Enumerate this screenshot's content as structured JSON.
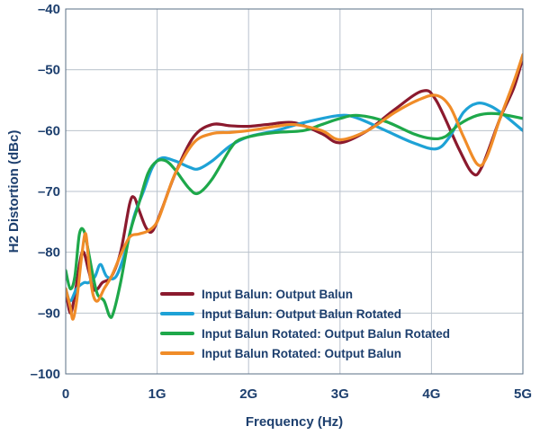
{
  "chart_data": {
    "type": "line",
    "xlabel": "Frequency (Hz)",
    "ylabel": "H2 Distortion (dBc)",
    "xlim": [
      0,
      5
    ],
    "ylim": [
      -100,
      -40
    ],
    "x_ticks": [
      0,
      1,
      2,
      3,
      4,
      5
    ],
    "x_tick_labels": [
      "0",
      "1G",
      "2G",
      "3G",
      "4G",
      "5G"
    ],
    "y_ticks": [
      -100,
      -90,
      -80,
      -70,
      -60,
      -50,
      -40
    ],
    "y_tick_labels": [
      "–100",
      "–90",
      "–80",
      "–70",
      "–60",
      "–50",
      "–40"
    ],
    "grid": true,
    "legend_position": "bottom-center",
    "x_unit_note": "x values in GHz",
    "series": [
      {
        "name": "Input Balun: Output Balun",
        "color": "#8b1a2e",
        "points": [
          [
            0,
            -86
          ],
          [
            0.05,
            -90
          ],
          [
            0.1,
            -87
          ],
          [
            0.18,
            -80
          ],
          [
            0.25,
            -83
          ],
          [
            0.3,
            -86
          ],
          [
            0.35,
            -86
          ],
          [
            0.4,
            -85
          ],
          [
            0.5,
            -84
          ],
          [
            0.6,
            -80
          ],
          [
            0.7,
            -72
          ],
          [
            0.75,
            -71
          ],
          [
            0.8,
            -73
          ],
          [
            0.88,
            -76
          ],
          [
            0.95,
            -76.5
          ],
          [
            1.05,
            -73
          ],
          [
            1.2,
            -67
          ],
          [
            1.4,
            -61
          ],
          [
            1.6,
            -59
          ],
          [
            1.8,
            -59.2
          ],
          [
            2.0,
            -59.3
          ],
          [
            2.2,
            -59
          ],
          [
            2.5,
            -58.7
          ],
          [
            2.8,
            -60.5
          ],
          [
            3.0,
            -62
          ],
          [
            3.3,
            -60
          ],
          [
            3.6,
            -56.5
          ],
          [
            3.9,
            -53.5
          ],
          [
            4.05,
            -55
          ],
          [
            4.3,
            -63
          ],
          [
            4.45,
            -67
          ],
          [
            4.55,
            -66
          ],
          [
            4.75,
            -58
          ],
          [
            4.9,
            -53
          ],
          [
            5.0,
            -48
          ]
        ]
      },
      {
        "name": "Input Balun: Output Balun Rotated",
        "color": "#1ea2d6",
        "points": [
          [
            0,
            -86
          ],
          [
            0.05,
            -88
          ],
          [
            0.12,
            -86
          ],
          [
            0.2,
            -85
          ],
          [
            0.25,
            -85
          ],
          [
            0.32,
            -84
          ],
          [
            0.38,
            -82
          ],
          [
            0.45,
            -84
          ],
          [
            0.55,
            -84
          ],
          [
            0.65,
            -80
          ],
          [
            0.75,
            -74
          ],
          [
            0.85,
            -70
          ],
          [
            0.95,
            -66
          ],
          [
            1.05,
            -64.5
          ],
          [
            1.2,
            -65
          ],
          [
            1.35,
            -66
          ],
          [
            1.45,
            -66.3
          ],
          [
            1.6,
            -65
          ],
          [
            1.8,
            -62.5
          ],
          [
            2.0,
            -61
          ],
          [
            2.3,
            -60
          ],
          [
            2.6,
            -58.7
          ],
          [
            3.0,
            -57.5
          ],
          [
            3.2,
            -58
          ],
          [
            3.5,
            -60
          ],
          [
            3.8,
            -62
          ],
          [
            4.05,
            -63
          ],
          [
            4.2,
            -61
          ],
          [
            4.35,
            -57
          ],
          [
            4.5,
            -55.5
          ],
          [
            4.65,
            -56
          ],
          [
            4.8,
            -57.5
          ],
          [
            5.0,
            -60
          ]
        ]
      },
      {
        "name": "Input Balun Rotated: Output Balun Rotated",
        "color": "#1ea84a",
        "points": [
          [
            0,
            -83
          ],
          [
            0.05,
            -86
          ],
          [
            0.1,
            -84
          ],
          [
            0.15,
            -77
          ],
          [
            0.2,
            -76.5
          ],
          [
            0.25,
            -80
          ],
          [
            0.3,
            -84
          ],
          [
            0.35,
            -87
          ],
          [
            0.42,
            -88
          ],
          [
            0.48,
            -90.5
          ],
          [
            0.52,
            -90
          ],
          [
            0.6,
            -85
          ],
          [
            0.7,
            -77
          ],
          [
            0.8,
            -72
          ],
          [
            0.9,
            -67
          ],
          [
            1.0,
            -65
          ],
          [
            1.1,
            -65
          ],
          [
            1.2,
            -66.5
          ],
          [
            1.35,
            -69.5
          ],
          [
            1.45,
            -70.3
          ],
          [
            1.6,
            -68
          ],
          [
            1.8,
            -63
          ],
          [
            1.9,
            -61.5
          ],
          [
            2.1,
            -60.7
          ],
          [
            2.3,
            -60.3
          ],
          [
            2.6,
            -60
          ],
          [
            2.8,
            -59
          ],
          [
            3.0,
            -58
          ],
          [
            3.2,
            -57.5
          ],
          [
            3.5,
            -58.5
          ],
          [
            3.8,
            -60.5
          ],
          [
            4.0,
            -61.3
          ],
          [
            4.15,
            -61
          ],
          [
            4.3,
            -59
          ],
          [
            4.5,
            -57.5
          ],
          [
            4.7,
            -57.2
          ],
          [
            5.0,
            -58
          ]
        ]
      },
      {
        "name": "Input Balun Rotated: Output Balun",
        "color": "#f08c28",
        "points": [
          [
            0,
            -86
          ],
          [
            0.05,
            -89
          ],
          [
            0.08,
            -91
          ],
          [
            0.12,
            -88
          ],
          [
            0.18,
            -80
          ],
          [
            0.22,
            -77
          ],
          [
            0.26,
            -83
          ],
          [
            0.3,
            -87
          ],
          [
            0.35,
            -88
          ],
          [
            0.42,
            -86
          ],
          [
            0.5,
            -84
          ],
          [
            0.6,
            -80.5
          ],
          [
            0.7,
            -77.5
          ],
          [
            0.8,
            -77
          ],
          [
            0.9,
            -76.5
          ],
          [
            1.0,
            -75
          ],
          [
            1.1,
            -71
          ],
          [
            1.2,
            -67
          ],
          [
            1.4,
            -62
          ],
          [
            1.6,
            -60.5
          ],
          [
            1.8,
            -60.3
          ],
          [
            2.0,
            -60
          ],
          [
            2.3,
            -59.3
          ],
          [
            2.5,
            -59
          ],
          [
            2.8,
            -60
          ],
          [
            3.0,
            -61.5
          ],
          [
            3.3,
            -60
          ],
          [
            3.6,
            -57
          ],
          [
            3.85,
            -55
          ],
          [
            4.05,
            -54.2
          ],
          [
            4.2,
            -56
          ],
          [
            4.35,
            -61
          ],
          [
            4.5,
            -65.5
          ],
          [
            4.6,
            -64.5
          ],
          [
            4.75,
            -58
          ],
          [
            4.9,
            -52
          ],
          [
            5.0,
            -47.5
          ]
        ]
      }
    ]
  }
}
